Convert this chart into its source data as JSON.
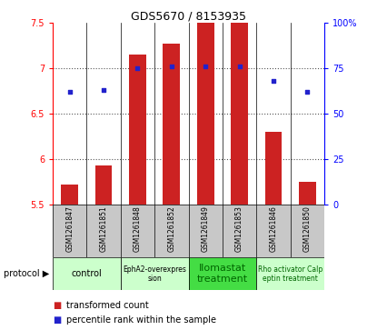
{
  "title": "GDS5670 / 8153935",
  "samples": [
    "GSM1261847",
    "GSM1261851",
    "GSM1261848",
    "GSM1261852",
    "GSM1261849",
    "GSM1261853",
    "GSM1261846",
    "GSM1261850"
  ],
  "bar_values": [
    5.72,
    5.93,
    7.15,
    7.27,
    7.5,
    7.5,
    6.3,
    5.75
  ],
  "bar_bottom": 5.5,
  "percentile_values": [
    62,
    63,
    75,
    76,
    76,
    76,
    68,
    62
  ],
  "ylim_left": [
    5.5,
    7.5
  ],
  "ylim_right": [
    0,
    100
  ],
  "yticks_left": [
    5.5,
    6.0,
    6.5,
    7.0,
    7.5
  ],
  "yticks_right": [
    0,
    25,
    50,
    75,
    100
  ],
  "bar_color": "#cc2222",
  "dot_color": "#2222cc",
  "protocols": [
    {
      "label": "control",
      "indices": [
        0,
        1
      ],
      "color": "#ccffcc",
      "text_color": "#000000",
      "fontsize": 7
    },
    {
      "label": "EphA2-overexpres\nsion",
      "indices": [
        2,
        3
      ],
      "color": "#ccffcc",
      "text_color": "#000000",
      "fontsize": 5.5
    },
    {
      "label": "Ilomastat\ntreatment",
      "indices": [
        4,
        5
      ],
      "color": "#44dd44",
      "text_color": "#006600",
      "fontsize": 8
    },
    {
      "label": "Rho activator Calp\neptin treatment",
      "indices": [
        6,
        7
      ],
      "color": "#ccffcc",
      "text_color": "#006600",
      "fontsize": 5.5
    }
  ],
  "legend_items": [
    {
      "label": "transformed count",
      "color": "#cc2222"
    },
    {
      "label": "percentile rank within the sample",
      "color": "#2222cc"
    }
  ],
  "bg_color_sample": "#c8c8c8",
  "bg_color_plot": "#ffffff",
  "grid_color": "#555555",
  "ytick_left_labels": [
    "5.5",
    "6",
    "6.5",
    "7",
    "7.5"
  ],
  "ytick_right_labels": [
    "0",
    "25",
    "50",
    "75",
    "100%"
  ]
}
